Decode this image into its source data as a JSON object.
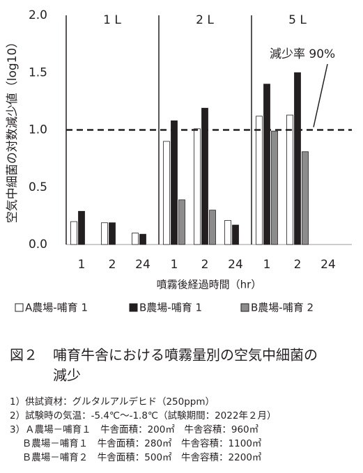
{
  "chart_data": {
    "type": "bar",
    "ylabel": "空気中細菌の対数減少値（log10）",
    "xlabel": "噴霧後経過時間（hr）",
    "panels": [
      "1 L",
      "2 L",
      "5 L"
    ],
    "categories": [
      "1",
      "2",
      "24",
      "1",
      "2",
      "24",
      "1",
      "2",
      "24"
    ],
    "series": [
      {
        "name": "A農場-哺育 1",
        "color": "#ffffff",
        "values": [
          0.2,
          0.19,
          0.1,
          0.9,
          1.01,
          0.21,
          1.12,
          1.13,
          null
        ]
      },
      {
        "name": "B農場-哺育 1",
        "color": "#231f20",
        "values": [
          0.29,
          0.19,
          0.09,
          1.08,
          1.19,
          0.17,
          1.4,
          1.5,
          null
        ]
      },
      {
        "name": "B農場-哺育 2",
        "color": "#8c8c8c",
        "values": [
          null,
          null,
          null,
          0.39,
          0.3,
          null,
          0.99,
          0.81,
          null
        ]
      }
    ],
    "ylim": [
      0,
      2
    ],
    "yticks": [
      {
        "value": 0,
        "label": "0.0"
      },
      {
        "value": 0.5,
        "label": "0.5"
      },
      {
        "value": 1,
        "label": "1.0"
      },
      {
        "value": 1.5,
        "label": "1.5"
      },
      {
        "value": 2,
        "label": "2.0"
      }
    ],
    "reference_line": {
      "value": 1,
      "label": "減少率 90%"
    }
  },
  "caption": {
    "label": "図２",
    "lines": [
      "哺育牛舎における噴霧量別の空気中細菌の",
      "減少"
    ]
  },
  "notes": [
    "1）供試資材：グルタルアルデヒド（250ppm）",
    "2）試験時の気温：-5.4℃～-1.8℃（試験期間：2022年２月）",
    "3）Ａ農場－哺育１　牛舎面積：200㎡　牛舎容積：960㎥",
    "　 Ｂ農場－哺育１　牛舎面積：280㎡　牛舎容積：1100㎥",
    "　 Ｂ農場－哺育２　牛舎面積：500㎡　牛舎容積：2200㎥"
  ]
}
